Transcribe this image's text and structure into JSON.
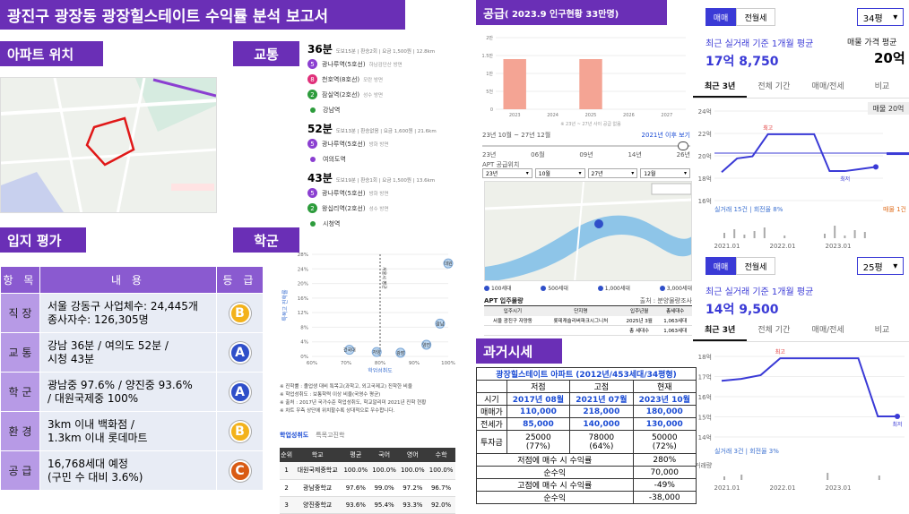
{
  "title": "광진구 광장동 광장힐스테이트 수익률 분석 보고서",
  "sections": {
    "location": "아파트 위치",
    "transport": "교통",
    "evaluation": "입지 평가",
    "school": "학군",
    "supply": "공급",
    "supply_sub": "( 2023.9 인구현황 33만명)",
    "past": "과거시세"
  },
  "transport": {
    "groups": [
      {
        "time": "36분",
        "detail": "도보15분 | 환승2회 | 요금 1,500원 | 12.8km",
        "steps": [
          {
            "line": "5",
            "color": "#8b3fd1",
            "name": "광나루역(5호선)",
            "dir": "하남검단산 방면"
          },
          {
            "line": "8",
            "color": "#e0307a",
            "name": "천호역(8호선)",
            "dir": "모란 방면"
          },
          {
            "line": "2",
            "color": "#2d9c3c",
            "name": "잠실역(2호선)",
            "dir": "성수 방면"
          },
          {
            "line": "",
            "color": "#2d9c3c",
            "name": "강남역",
            "dir": ""
          }
        ]
      },
      {
        "time": "52분",
        "detail": "도보13분 | 환승없음 | 요금 1,600원 | 21.6km",
        "steps": [
          {
            "line": "5",
            "color": "#8b3fd1",
            "name": "광나루역(5호선)",
            "dir": "방화 방면"
          },
          {
            "line": "",
            "color": "#8b3fd1",
            "name": "여의도역",
            "dir": ""
          }
        ]
      },
      {
        "time": "43분",
        "detail": "도보19분 | 환승1회 | 요금 1,500원 | 13.6km",
        "steps": [
          {
            "line": "5",
            "color": "#8b3fd1",
            "name": "광나루역(5호선)",
            "dir": "방화 방면"
          },
          {
            "line": "2",
            "color": "#2d9c3c",
            "name": "왕십리역(2호선)",
            "dir": "성수 방면"
          },
          {
            "line": "",
            "color": "#2d9c3c",
            "name": "시청역",
            "dir": ""
          }
        ]
      }
    ]
  },
  "eval_table": {
    "headers": [
      "항 목",
      "내 용",
      "등 급"
    ],
    "rows": [
      {
        "item": "직 장",
        "content": "서울 강동구 사업체수: 24,445개\n종사자수: 126,305명",
        "grade": "B",
        "color": "#f3b21b"
      },
      {
        "item": "교 통",
        "content": "강남 36분 / 여의도 52분 /\n시청 43분",
        "grade": "A",
        "color": "#2f4fc9"
      },
      {
        "item": "학 군",
        "content": "광남중 97.6% / 양진중 93.6%\n/ 대원국제중 100%",
        "grade": "A",
        "color": "#2f4fc9"
      },
      {
        "item": "환 경",
        "content": "3km 이내 백화점 /\n1.3km 이내 롯데마트",
        "grade": "B",
        "color": "#f3b21b"
      },
      {
        "item": "공 급",
        "content": "16,768세대 예정\n(구민 수 대비 3.6%)",
        "grade": "C",
        "color": "#d95b13"
      }
    ]
  },
  "school": {
    "notes": [
      "※ 진학률 : 졸업생 대비 특목고(과학고, 외고국제고) 진학한 비율",
      "※ 학업성취도 : 보통학력 이상 비율(국영수 평균)",
      "※ 출처 : 2017년 국가수준 학업성취도, 학교알리미 2021년 진학 현황",
      "※ 차트 우측 상단에 위치할수록 상대적으로 우수합니다."
    ],
    "tabs": [
      "학업성취도",
      "특목고진학"
    ],
    "headers": [
      "순위",
      "학교",
      "평균",
      "국어",
      "영어",
      "수학"
    ],
    "rows": [
      [
        "1",
        "대원국제중학교",
        "100.0%",
        "100.0%",
        "100.0%",
        "100.0%"
      ],
      [
        "2",
        "광남중학교",
        "97.6%",
        "99.0%",
        "97.2%",
        "96.7%"
      ],
      [
        "3",
        "양진중학교",
        "93.6%",
        "95.4%",
        "93.3%",
        "92.0%"
      ]
    ],
    "chart_labels": {
      "x": "학업성취도",
      "y": "특목고 진학률",
      "avg": "서울시 평균"
    }
  },
  "chart_data": {
    "type": "scatter",
    "x_ticks": [
      "60%",
      "70%",
      "80%",
      "90%",
      "100%"
    ],
    "y_ticks": [
      "0%",
      "4%",
      "8%",
      "12%",
      "16%",
      "20%",
      "24%",
      "28%"
    ],
    "points": [
      {
        "label": "대원",
        "x": 100,
        "y": 25.5
      },
      {
        "label": "광남",
        "x": 97.6,
        "y": 9
      },
      {
        "label": "양진",
        "x": 93.6,
        "y": 3.2
      },
      {
        "label": "건국대",
        "x": 71,
        "y": 1.8
      },
      {
        "label": "자양",
        "x": 79,
        "y": 1.2
      },
      {
        "label": "광장",
        "x": 86,
        "y": 1
      }
    ],
    "xlabel": "학업성취도",
    "ylabel": "특목고 진학률"
  },
  "supply_chart": {
    "years": [
      "2023",
      "2024",
      "2025",
      "2026",
      "2027"
    ],
    "y_ticks": [
      "0",
      "5천",
      "1만",
      "1.5만",
      "2만"
    ],
    "note": "※ 23년 ~ 27년 사이 공급 없음",
    "range": "23년 10월 ~ 27년 12월",
    "link": "2021년 이후 보기",
    "slider": [
      "23년",
      "06월",
      "09년",
      "14년",
      "26년"
    ],
    "search_label": "APT 공급위치",
    "selects": [
      "23년",
      "10월",
      "27년",
      "12월"
    ],
    "list_title": "APT 입주물량",
    "list_source": "출처 : 분양물량조사",
    "list_headers": [
      "입주시기",
      "단지명",
      "입주년월",
      "총세대수"
    ],
    "list_rows": [
      [
        "서울 광진구 자양동",
        "롯데캐슬리버파크시그니처",
        "2025년 3월",
        "1,063세대"
      ],
      [
        "",
        "",
        "총 세대수",
        "1,063세대"
      ]
    ],
    "legend": [
      "100세대",
      "500세대",
      "1,000세대",
      "3,000세대"
    ]
  },
  "past_table": {
    "title": "광장힐스테이트 아파트 (2012년/453세대/34평형)",
    "cols": [
      "",
      "저점",
      "고점",
      "현재"
    ],
    "rows": [
      [
        "시기",
        "2017년 08월",
        "2021년 07월",
        "2023년 10월"
      ],
      [
        "매매가",
        "110,000",
        "218,000",
        "180,000"
      ],
      [
        "전세가",
        "85,000",
        "140,000",
        "130,000"
      ],
      [
        "투자금",
        "25000\n(77%)",
        "78000\n(64%)",
        "50000\n(72%)"
      ]
    ],
    "summary": [
      [
        "저점에 매수 시 수익률",
        "280%"
      ],
      [
        "순수익",
        "70,000"
      ],
      [
        "고점에 매수 시 수익률",
        "-49%"
      ],
      [
        "순수익",
        "-38,000"
      ]
    ]
  },
  "price34": {
    "tabs": [
      "매매",
      "전월세"
    ],
    "size": "34평",
    "label": "최근 실거래 기준 1개월 평균",
    "value": "17억 8,750",
    "right_label": "매물 가격 평균",
    "right_value": "20억",
    "period_tabs": [
      "최근 3년",
      "전체 기간",
      "매매/전세",
      "비교"
    ],
    "y_ticks": [
      "24억",
      "22억",
      "20억",
      "18억",
      "16억"
    ],
    "x_ticks": [
      "2021.01",
      "2022.01",
      "2023.01"
    ],
    "high": "최고",
    "low": "최저",
    "badge": "매물 20억",
    "volume": "실거래 15건 | 회전율 8%",
    "listing": "매물 1건",
    "series": [
      18.2,
      19.5,
      19.7,
      21.8,
      21.8,
      21.8,
      21.8,
      18.3,
      18.3,
      18.5,
      18.7
    ],
    "accent": "#3a3ad6"
  },
  "price25": {
    "tabs": [
      "매매",
      "전월세"
    ],
    "size": "25평",
    "label": "최근 실거래 기준 1개월 평균",
    "value": "14억 9,500",
    "period_tabs": [
      "최근 3년",
      "전체 기간",
      "매매/전세",
      "비교"
    ],
    "y_ticks": [
      "18억",
      "17억",
      "16억",
      "15억",
      "14억"
    ],
    "x_ticks": [
      "2021.01",
      "2022.01",
      "2023.01"
    ],
    "high": "최고",
    "low": "최저",
    "volume": "실거래 3건 | 회전율 3%",
    "trade": "거래량",
    "series": [
      16.7,
      16.8,
      17.0,
      17.9,
      17.9,
      17.9,
      17.9,
      17.9,
      14.8,
      14.8
    ]
  }
}
